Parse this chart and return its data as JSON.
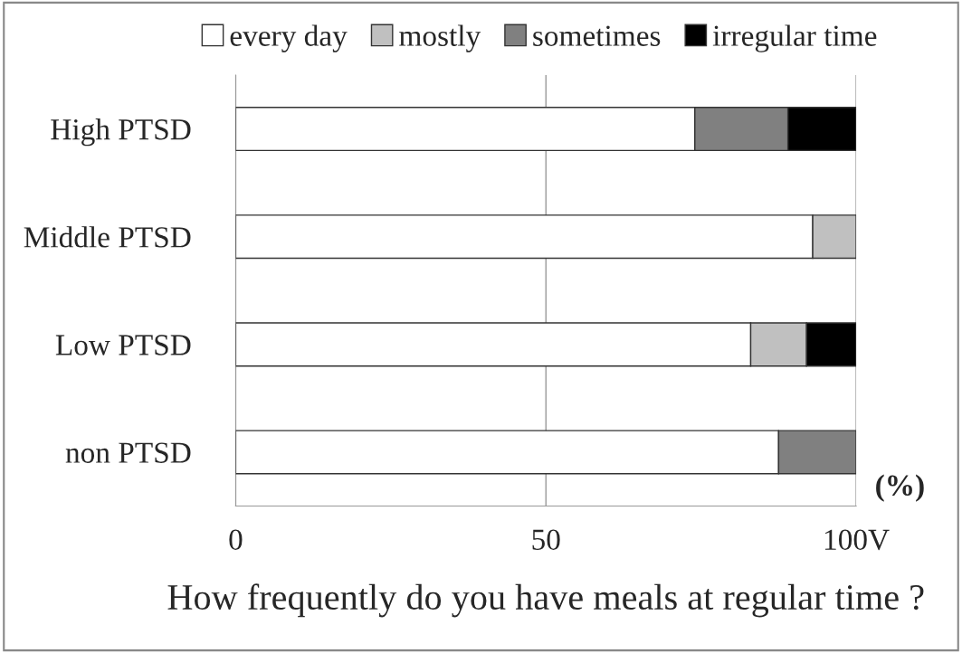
{
  "chart_data": {
    "type": "bar",
    "orientation": "horizontal",
    "stacked": true,
    "xlabel": "How frequently do you have meals at regular time ?",
    "categories": [
      "High PTSD",
      "Middle PTSD",
      "Low PTSD",
      "non PTSD"
    ],
    "series": [
      {
        "name": "every day",
        "color": "#ffffff",
        "values": [
          74,
          93,
          83,
          87.5
        ]
      },
      {
        "name": "mostly",
        "color": "#c0c0c0",
        "values": [
          null,
          7,
          9,
          null
        ]
      },
      {
        "name": "sometimes",
        "color": "#808080",
        "values": [
          15,
          null,
          null,
          12.5
        ]
      },
      {
        "name": "irregular time",
        "color": "#000000",
        "values": [
          11,
          null,
          8,
          null
        ]
      }
    ],
    "xlim": [
      0,
      100
    ],
    "xticks": [
      0,
      50,
      {
        "value": 100,
        "label": "100V"
      }
    ],
    "grid": "x",
    "legend": "top",
    "annotations": [
      "(%)"
    ]
  }
}
